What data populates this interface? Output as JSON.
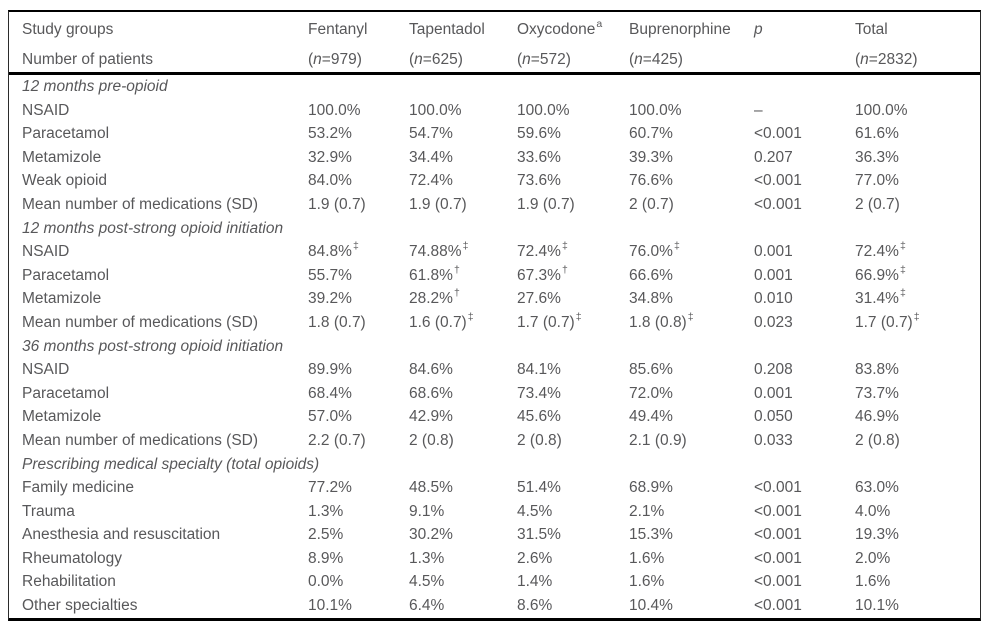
{
  "table": {
    "colors": {
      "text": "#58585a",
      "rule": "#000000",
      "background": "#ffffff"
    },
    "header": {
      "row_label_line1": "Study groups",
      "row_label_line2": "Number of patients",
      "n_prefix": "(",
      "n_symbol": "n",
      "n_equals": "=",
      "n_suffix": ")",
      "columns": [
        {
          "label": "Fentanyl",
          "sup": "",
          "n": "979",
          "italic": false
        },
        {
          "label": "Tapentadol",
          "sup": "",
          "n": "625",
          "italic": false
        },
        {
          "label": "Oxycodone",
          "sup": "a",
          "n": "572",
          "italic": false
        },
        {
          "label": "Buprenorphine",
          "sup": "",
          "n": "425",
          "italic": false
        },
        {
          "label": "p",
          "sup": "",
          "n": "",
          "italic": true
        },
        {
          "label": "Total",
          "sup": "",
          "n": "2832",
          "italic": false
        }
      ]
    },
    "rows": [
      {
        "type": "section",
        "label": "12 months pre-opioid"
      },
      {
        "type": "data",
        "label": "NSAID",
        "values": [
          "100.0%",
          "100.0%",
          "100.0%",
          "100.0%",
          "–",
          "100.0%"
        ]
      },
      {
        "type": "data",
        "label": "Paracetamol",
        "values": [
          "53.2%",
          "54.7%",
          "59.6%",
          "60.7%",
          "<0.001",
          "61.6%"
        ]
      },
      {
        "type": "data",
        "label": "Metamizole",
        "values": [
          "32.9%",
          "34.4%",
          "33.6%",
          "39.3%",
          "0.207",
          "36.3%"
        ]
      },
      {
        "type": "data",
        "label": "Weak opioid",
        "values": [
          "84.0%",
          "72.4%",
          "73.6%",
          "76.6%",
          "<0.001",
          "77.0%"
        ]
      },
      {
        "type": "data",
        "label": "Mean number of medications (SD)",
        "values": [
          "1.9 (0.7)",
          "1.9 (0.7)",
          "1.9 (0.7)",
          "2 (0.7)",
          "<0.001",
          "2 (0.7)"
        ]
      },
      {
        "type": "section",
        "label": "12 months post-strong opioid initiation"
      },
      {
        "type": "data",
        "label": "NSAID",
        "values": [
          "84.8%^‡",
          "74.88%^‡",
          "72.4%^‡",
          "76.0%^‡",
          "0.001",
          "72.4%^‡"
        ]
      },
      {
        "type": "data",
        "label": "Paracetamol",
        "values": [
          "55.7%",
          "61.8%^†",
          "67.3%^†",
          "66.6%",
          "0.001",
          "66.9%^‡"
        ]
      },
      {
        "type": "data",
        "label": "Metamizole",
        "values": [
          "39.2%",
          "28.2%^†",
          "27.6%",
          "34.8%",
          "0.010",
          "31.4%^‡"
        ]
      },
      {
        "type": "data",
        "label": "Mean number of medications (SD)",
        "values": [
          "1.8 (0.7)",
          "1.6 (0.7)^‡",
          "1.7 (0.7)^‡",
          "1.8 (0.8)^‡",
          "0.023",
          "1.7 (0.7)^‡"
        ]
      },
      {
        "type": "section",
        "label": "36 months post-strong opioid initiation"
      },
      {
        "type": "data",
        "label": "NSAID",
        "values": [
          "89.9%",
          "84.6%",
          "84.1%",
          "85.6%",
          "0.208",
          "83.8%"
        ]
      },
      {
        "type": "data",
        "label": "Paracetamol",
        "values": [
          "68.4%",
          "68.6%",
          "73.4%",
          "72.0%",
          "0.001",
          "73.7%"
        ]
      },
      {
        "type": "data",
        "label": "Metamizole",
        "values": [
          "57.0%",
          "42.9%",
          "45.6%",
          "49.4%",
          "0.050",
          "46.9%"
        ]
      },
      {
        "type": "data",
        "label": "Mean number of medications (SD)",
        "values": [
          "2.2 (0.7)",
          "2 (0.8)",
          "2 (0.8)",
          "2.1 (0.9)",
          "0.033",
          "2 (0.8)"
        ]
      },
      {
        "type": "section",
        "label": "Prescribing medical specialty (total opioids)"
      },
      {
        "type": "data",
        "label": "Family medicine",
        "values": [
          "77.2%",
          "48.5%",
          "51.4%",
          "68.9%",
          "<0.001",
          "63.0%"
        ]
      },
      {
        "type": "data",
        "label": "Trauma",
        "values": [
          "1.3%",
          "9.1%",
          "4.5%",
          "2.1%",
          "<0.001",
          "4.0%"
        ]
      },
      {
        "type": "data",
        "label": "Anesthesia and resuscitation",
        "values": [
          "2.5%",
          "30.2%",
          "31.5%",
          "15.3%",
          "<0.001",
          "19.3%"
        ]
      },
      {
        "type": "data",
        "label": "Rheumatology",
        "values": [
          "8.9%",
          "1.3%",
          "2.6%",
          "1.6%",
          "<0.001",
          "2.0%"
        ]
      },
      {
        "type": "data",
        "label": "Rehabilitation",
        "values": [
          "0.0%",
          "4.5%",
          "1.4%",
          "1.6%",
          "<0.001",
          "1.6%"
        ]
      },
      {
        "type": "data",
        "label": "Other specialties",
        "values": [
          "10.1%",
          "6.4%",
          "8.6%",
          "10.4%",
          "<0.001",
          "10.1%"
        ]
      }
    ]
  }
}
